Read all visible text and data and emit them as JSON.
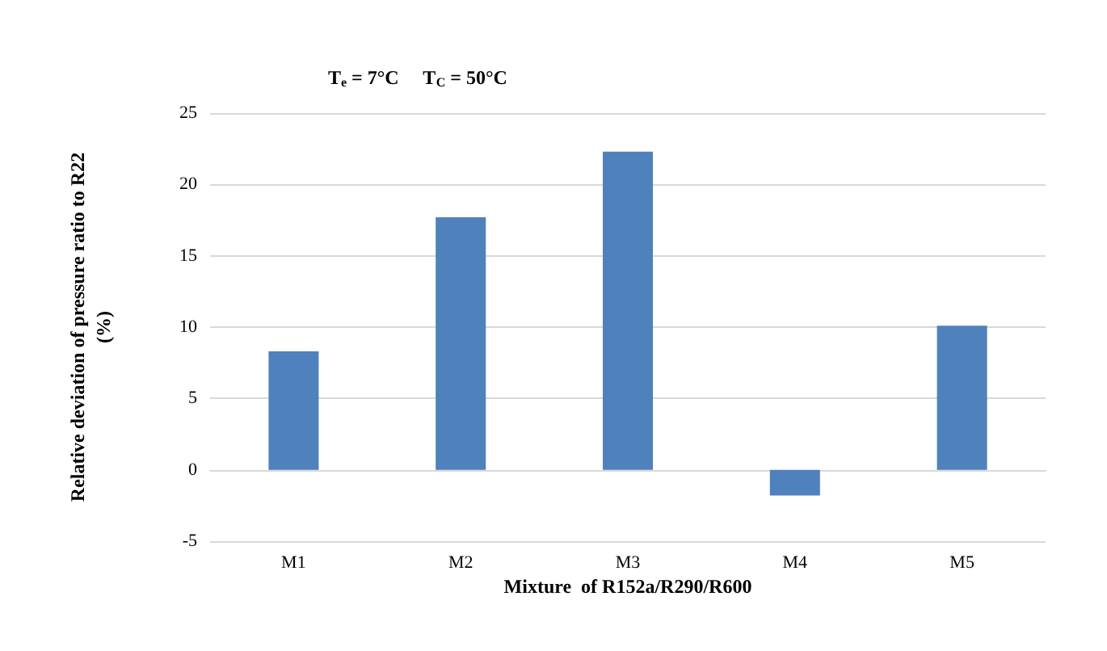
{
  "chart_data": {
    "type": "bar",
    "title": "T$_{e}$ = 7°C     T$_{C}$ = 50°C",
    "xlabel": "Mixture  of R152a/R290/R600",
    "ylabel": "Relative deviation of pressure ratio to R22\n(%)",
    "categories": [
      "M1",
      "M2",
      "M3",
      "M4",
      "M5"
    ],
    "values": [
      8.3,
      17.7,
      22.3,
      -1.8,
      10.1
    ],
    "color": "#4f81bd",
    "ylim": [
      -5,
      25
    ],
    "yticks": [
      -5,
      0,
      5,
      10,
      15,
      20,
      25
    ],
    "grid": "y"
  }
}
